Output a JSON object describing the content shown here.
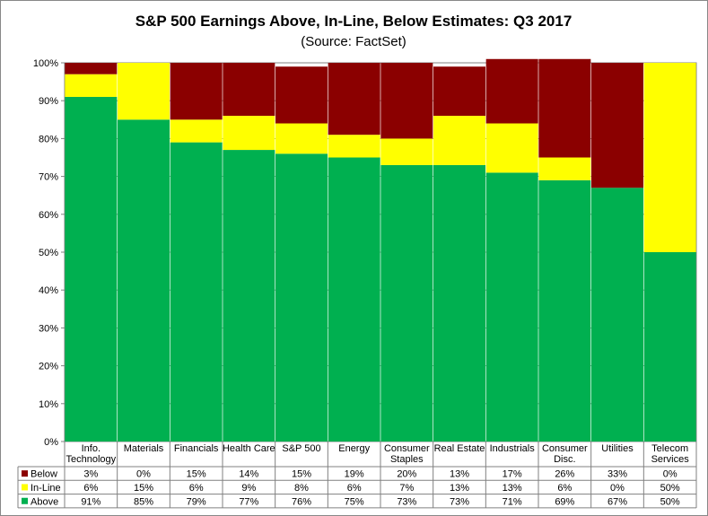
{
  "chart_data": {
    "type": "bar",
    "stacked": true,
    "title": "S&P 500 Earnings Above, In-Line, Below Estimates: Q3 2017",
    "subtitle": "(Source: FactSet)",
    "ylim": [
      0,
      100
    ],
    "y_ticks": [
      "0%",
      "10%",
      "20%",
      "30%",
      "40%",
      "50%",
      "60%",
      "70%",
      "80%",
      "90%",
      "100%"
    ],
    "categories": [
      [
        "Info.",
        "Technology"
      ],
      [
        "Materials"
      ],
      [
        "Financials"
      ],
      [
        "Health Care"
      ],
      [
        "S&P 500"
      ],
      [
        "Energy"
      ],
      [
        "Consumer",
        "Staples"
      ],
      [
        "Real Estate"
      ],
      [
        "Industrials"
      ],
      [
        "Consumer",
        "Disc."
      ],
      [
        "Utilities"
      ],
      [
        "Telecom",
        "Services"
      ]
    ],
    "series": [
      {
        "name": "Above",
        "color": "#00B050",
        "values": [
          91,
          85,
          79,
          77,
          76,
          75,
          73,
          73,
          71,
          69,
          67,
          50
        ],
        "labels": [
          "91%",
          "85%",
          "79%",
          "77%",
          "76%",
          "75%",
          "73%",
          "73%",
          "71%",
          "69%",
          "67%",
          "50%"
        ]
      },
      {
        "name": "In-Line",
        "color": "#FFFF00",
        "values": [
          6,
          15,
          6,
          9,
          8,
          6,
          7,
          13,
          13,
          6,
          0,
          50
        ],
        "labels": [
          "6%",
          "15%",
          "6%",
          "9%",
          "8%",
          "6%",
          "7%",
          "13%",
          "13%",
          "6%",
          "0%",
          "50%"
        ]
      },
      {
        "name": "Below",
        "color": "#8B0000",
        "values": [
          3,
          0,
          15,
          14,
          15,
          19,
          20,
          13,
          17,
          26,
          33,
          0
        ],
        "labels": [
          "3%",
          "0%",
          "15%",
          "14%",
          "15%",
          "19%",
          "20%",
          "13%",
          "17%",
          "26%",
          "33%",
          "0%"
        ]
      }
    ],
    "table_row_order": [
      "Below",
      "In-Line",
      "Above"
    ],
    "gridlines": true,
    "legend": "data-table"
  }
}
